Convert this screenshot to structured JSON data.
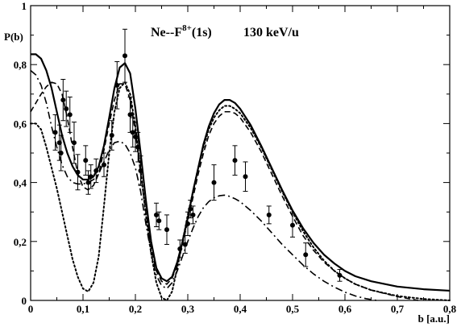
{
  "chart_data": {
    "type": "line",
    "title": "",
    "annotation": {
      "prefix": "Ne--F",
      "superscript": "8+",
      "suffix": "(1s)",
      "energy": "130 keV/u"
    },
    "xlabel": "b [a.u.]",
    "ylabel": "P(b)",
    "xlim": [
      0,
      0.8
    ],
    "ylim": [
      0,
      1
    ],
    "x_ticks": [
      {
        "value": 0,
        "label": "0"
      },
      {
        "value": 0.1,
        "label": "0,1"
      },
      {
        "value": 0.2,
        "label": "0,2"
      },
      {
        "value": 0.3,
        "label": "0,3"
      },
      {
        "value": 0.4,
        "label": "0,4"
      },
      {
        "value": 0.5,
        "label": "0,5"
      },
      {
        "value": 0.6,
        "label": "0,6"
      },
      {
        "value": 0.7,
        "label": "0,7"
      },
      {
        "value": 0.8,
        "label": "0,8"
      }
    ],
    "y_ticks": [
      {
        "value": 0,
        "label": "0"
      },
      {
        "value": 0.2,
        "label": "0,2"
      },
      {
        "value": 0.4,
        "label": "0,4"
      },
      {
        "value": 0.6,
        "label": "0,6"
      },
      {
        "value": 0.8,
        "label": "0,8"
      },
      {
        "value": 1,
        "label": "1"
      }
    ],
    "grid": false,
    "legend": "none",
    "series": [
      {
        "style": "solid",
        "points": [
          [
            0,
            0.835
          ],
          [
            0.01,
            0.835
          ],
          [
            0.02,
            0.82
          ],
          [
            0.03,
            0.78
          ],
          [
            0.04,
            0.72
          ],
          [
            0.05,
            0.64
          ],
          [
            0.06,
            0.56
          ],
          [
            0.07,
            0.5
          ],
          [
            0.08,
            0.455
          ],
          [
            0.09,
            0.425
          ],
          [
            0.1,
            0.41
          ],
          [
            0.11,
            0.41
          ],
          [
            0.12,
            0.42
          ],
          [
            0.13,
            0.455
          ],
          [
            0.14,
            0.525
          ],
          [
            0.15,
            0.62
          ],
          [
            0.16,
            0.72
          ],
          [
            0.17,
            0.79
          ],
          [
            0.18,
            0.805
          ],
          [
            0.19,
            0.77
          ],
          [
            0.2,
            0.65
          ],
          [
            0.21,
            0.5
          ],
          [
            0.22,
            0.34
          ],
          [
            0.23,
            0.2
          ],
          [
            0.24,
            0.11
          ],
          [
            0.25,
            0.075
          ],
          [
            0.26,
            0.065
          ],
          [
            0.27,
            0.08
          ],
          [
            0.28,
            0.13
          ],
          [
            0.29,
            0.2
          ],
          [
            0.3,
            0.28
          ],
          [
            0.31,
            0.37
          ],
          [
            0.32,
            0.45
          ],
          [
            0.33,
            0.53
          ],
          [
            0.34,
            0.59
          ],
          [
            0.35,
            0.635
          ],
          [
            0.36,
            0.665
          ],
          [
            0.37,
            0.68
          ],
          [
            0.38,
            0.68
          ],
          [
            0.39,
            0.67
          ],
          [
            0.4,
            0.65
          ],
          [
            0.42,
            0.595
          ],
          [
            0.44,
            0.525
          ],
          [
            0.46,
            0.45
          ],
          [
            0.48,
            0.375
          ],
          [
            0.5,
            0.305
          ],
          [
            0.52,
            0.245
          ],
          [
            0.54,
            0.195
          ],
          [
            0.56,
            0.155
          ],
          [
            0.58,
            0.125
          ],
          [
            0.6,
            0.1
          ],
          [
            0.62,
            0.082
          ],
          [
            0.65,
            0.065
          ],
          [
            0.7,
            0.047
          ],
          [
            0.75,
            0.038
          ],
          [
            0.8,
            0.033
          ]
        ]
      },
      {
        "style": "dashed",
        "points": [
          [
            0,
            0.64
          ],
          [
            0.01,
            0.67
          ],
          [
            0.02,
            0.7
          ],
          [
            0.03,
            0.725
          ],
          [
            0.04,
            0.74
          ],
          [
            0.05,
            0.735
          ],
          [
            0.06,
            0.7
          ],
          [
            0.07,
            0.62
          ],
          [
            0.08,
            0.52
          ],
          [
            0.09,
            0.43
          ],
          [
            0.1,
            0.385
          ],
          [
            0.11,
            0.375
          ],
          [
            0.12,
            0.39
          ],
          [
            0.13,
            0.43
          ],
          [
            0.14,
            0.51
          ],
          [
            0.15,
            0.6
          ],
          [
            0.16,
            0.68
          ],
          [
            0.17,
            0.735
          ],
          [
            0.18,
            0.735
          ],
          [
            0.19,
            0.68
          ],
          [
            0.2,
            0.57
          ],
          [
            0.21,
            0.43
          ],
          [
            0.22,
            0.3
          ],
          [
            0.23,
            0.18
          ],
          [
            0.24,
            0.1
          ],
          [
            0.25,
            0.065
          ],
          [
            0.26,
            0.055
          ],
          [
            0.27,
            0.075
          ],
          [
            0.28,
            0.12
          ],
          [
            0.29,
            0.19
          ],
          [
            0.3,
            0.27
          ],
          [
            0.31,
            0.35
          ],
          [
            0.32,
            0.43
          ],
          [
            0.33,
            0.5
          ],
          [
            0.34,
            0.56
          ],
          [
            0.35,
            0.6
          ],
          [
            0.36,
            0.625
          ],
          [
            0.37,
            0.64
          ],
          [
            0.38,
            0.64
          ],
          [
            0.39,
            0.635
          ],
          [
            0.4,
            0.62
          ],
          [
            0.42,
            0.57
          ],
          [
            0.44,
            0.505
          ],
          [
            0.46,
            0.43
          ],
          [
            0.48,
            0.355
          ],
          [
            0.5,
            0.285
          ],
          [
            0.52,
            0.22
          ],
          [
            0.54,
            0.17
          ],
          [
            0.56,
            0.13
          ],
          [
            0.58,
            0.1
          ],
          [
            0.6,
            0.075
          ],
          [
            0.62,
            0.055
          ],
          [
            0.65,
            0.035
          ],
          [
            0.7,
            0.013
          ],
          [
            0.74,
            0.0
          ]
        ]
      },
      {
        "style": "dotted",
        "points": [
          [
            0,
            0.6
          ],
          [
            0.01,
            0.6
          ],
          [
            0.02,
            0.58
          ],
          [
            0.03,
            0.52
          ],
          [
            0.04,
            0.45
          ],
          [
            0.05,
            0.38
          ],
          [
            0.06,
            0.3
          ],
          [
            0.07,
            0.22
          ],
          [
            0.08,
            0.14
          ],
          [
            0.09,
            0.08
          ],
          [
            0.1,
            0.04
          ],
          [
            0.11,
            0.03
          ],
          [
            0.12,
            0.06
          ],
          [
            0.13,
            0.15
          ],
          [
            0.14,
            0.32
          ],
          [
            0.15,
            0.5
          ],
          [
            0.16,
            0.64
          ],
          [
            0.17,
            0.72
          ],
          [
            0.18,
            0.74
          ],
          [
            0.19,
            0.7
          ],
          [
            0.2,
            0.59
          ],
          [
            0.21,
            0.44
          ],
          [
            0.22,
            0.29
          ],
          [
            0.23,
            0.16
          ],
          [
            0.24,
            0.06
          ],
          [
            0.25,
            0.01
          ],
          [
            0.26,
            0.0
          ],
          [
            0.27,
            0.03
          ],
          [
            0.28,
            0.11
          ],
          [
            0.29,
            0.2
          ],
          [
            0.3,
            0.29
          ],
          [
            0.31,
            0.37
          ],
          [
            0.32,
            0.45
          ],
          [
            0.33,
            0.52
          ],
          [
            0.34,
            0.58
          ],
          [
            0.35,
            0.62
          ],
          [
            0.36,
            0.645
          ],
          [
            0.37,
            0.66
          ],
          [
            0.38,
            0.66
          ],
          [
            0.39,
            0.65
          ],
          [
            0.4,
            0.635
          ],
          [
            0.42,
            0.585
          ],
          [
            0.44,
            0.52
          ],
          [
            0.46,
            0.445
          ],
          [
            0.48,
            0.37
          ],
          [
            0.5,
            0.3
          ],
          [
            0.52,
            0.235
          ],
          [
            0.54,
            0.18
          ],
          [
            0.56,
            0.135
          ],
          [
            0.58,
            0.1
          ],
          [
            0.6,
            0.075
          ],
          [
            0.62,
            0.055
          ],
          [
            0.65,
            0.035
          ],
          [
            0.7,
            0.015
          ],
          [
            0.75,
            0.005
          ],
          [
            0.8,
            0.0
          ]
        ]
      },
      {
        "style": "dash-dot",
        "points": [
          [
            0,
            0.78
          ],
          [
            0.01,
            0.765
          ],
          [
            0.02,
            0.73
          ],
          [
            0.03,
            0.67
          ],
          [
            0.04,
            0.59
          ],
          [
            0.05,
            0.52
          ],
          [
            0.06,
            0.46
          ],
          [
            0.07,
            0.42
          ],
          [
            0.08,
            0.4
          ],
          [
            0.09,
            0.395
          ],
          [
            0.1,
            0.395
          ],
          [
            0.11,
            0.4
          ],
          [
            0.12,
            0.41
          ],
          [
            0.13,
            0.43
          ],
          [
            0.14,
            0.47
          ],
          [
            0.15,
            0.51
          ],
          [
            0.16,
            0.535
          ],
          [
            0.17,
            0.54
          ],
          [
            0.18,
            0.53
          ],
          [
            0.19,
            0.5
          ],
          [
            0.2,
            0.45
          ],
          [
            0.21,
            0.37
          ],
          [
            0.22,
            0.26
          ],
          [
            0.23,
            0.16
          ],
          [
            0.24,
            0.085
          ],
          [
            0.25,
            0.05
          ],
          [
            0.26,
            0.04
          ],
          [
            0.27,
            0.06
          ],
          [
            0.28,
            0.1
          ],
          [
            0.29,
            0.15
          ],
          [
            0.3,
            0.2
          ],
          [
            0.31,
            0.245
          ],
          [
            0.32,
            0.285
          ],
          [
            0.33,
            0.315
          ],
          [
            0.34,
            0.335
          ],
          [
            0.35,
            0.348
          ],
          [
            0.36,
            0.355
          ],
          [
            0.37,
            0.357
          ],
          [
            0.38,
            0.353
          ],
          [
            0.39,
            0.345
          ],
          [
            0.4,
            0.335
          ],
          [
            0.42,
            0.305
          ],
          [
            0.44,
            0.27
          ],
          [
            0.46,
            0.23
          ],
          [
            0.48,
            0.19
          ],
          [
            0.5,
            0.155
          ],
          [
            0.52,
            0.12
          ],
          [
            0.54,
            0.09
          ],
          [
            0.56,
            0.065
          ],
          [
            0.58,
            0.045
          ],
          [
            0.6,
            0.028
          ],
          [
            0.62,
            0.015
          ],
          [
            0.64,
            0.006
          ],
          [
            0.66,
            0.0
          ]
        ]
      }
    ],
    "measurements": [
      {
        "x": 0.047,
        "y": 0.57,
        "err": 0.06
      },
      {
        "x": 0.055,
        "y": 0.535,
        "err": 0.06
      },
      {
        "x": 0.058,
        "y": 0.5,
        "err": 0.06
      },
      {
        "x": 0.062,
        "y": 0.68,
        "err": 0.07
      },
      {
        "x": 0.068,
        "y": 0.65,
        "err": 0.06
      },
      {
        "x": 0.075,
        "y": 0.63,
        "err": 0.06
      },
      {
        "x": 0.083,
        "y": 0.535,
        "err": 0.07
      },
      {
        "x": 0.09,
        "y": 0.435,
        "err": 0.06
      },
      {
        "x": 0.105,
        "y": 0.475,
        "err": 0.05
      },
      {
        "x": 0.11,
        "y": 0.4,
        "err": 0.04
      },
      {
        "x": 0.115,
        "y": 0.42,
        "err": 0.04
      },
      {
        "x": 0.125,
        "y": 0.44,
        "err": 0.04
      },
      {
        "x": 0.14,
        "y": 0.46,
        "err": 0.04
      },
      {
        "x": 0.155,
        "y": 0.56,
        "err": 0.05
      },
      {
        "x": 0.165,
        "y": 0.73,
        "err": 0.08
      },
      {
        "x": 0.18,
        "y": 0.83,
        "err": 0.09
      },
      {
        "x": 0.19,
        "y": 0.63,
        "err": 0.06
      },
      {
        "x": 0.195,
        "y": 0.57,
        "err": 0.05
      },
      {
        "x": 0.2,
        "y": 0.555,
        "err": 0.05
      },
      {
        "x": 0.205,
        "y": 0.52,
        "err": 0.05
      },
      {
        "x": 0.21,
        "y": 0.44,
        "err": 0.05
      },
      {
        "x": 0.24,
        "y": 0.29,
        "err": 0.04
      },
      {
        "x": 0.245,
        "y": 0.27,
        "err": 0.03
      },
      {
        "x": 0.26,
        "y": 0.24,
        "err": 0.05
      },
      {
        "x": 0.285,
        "y": 0.175,
        "err": 0.03
      },
      {
        "x": 0.295,
        "y": 0.19,
        "err": 0.03
      },
      {
        "x": 0.3,
        "y": 0.26,
        "err": 0.04
      },
      {
        "x": 0.305,
        "y": 0.31,
        "err": 0.03
      },
      {
        "x": 0.31,
        "y": 0.29,
        "err": 0.03
      },
      {
        "x": 0.35,
        "y": 0.4,
        "err": 0.06
      },
      {
        "x": 0.39,
        "y": 0.475,
        "err": 0.05
      },
      {
        "x": 0.41,
        "y": 0.42,
        "err": 0.05
      },
      {
        "x": 0.455,
        "y": 0.29,
        "err": 0.03
      },
      {
        "x": 0.5,
        "y": 0.255,
        "err": 0.04
      },
      {
        "x": 0.525,
        "y": 0.155,
        "err": 0.04
      },
      {
        "x": 0.59,
        "y": 0.085,
        "err": 0.02
      }
    ]
  }
}
